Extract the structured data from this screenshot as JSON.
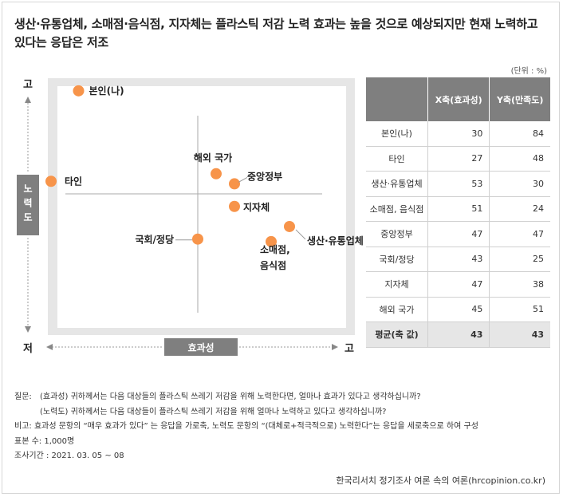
{
  "title": "생산·유통업체, 소매점·음식점, 지자체는 플라스틱 저감 노력 효과는 높을 것으로 예상되지만 현재 노력하고 있다는 응답은 저조",
  "unit": "(단위 : %)",
  "axis": {
    "y_label": "노력도",
    "x_label": "효과성",
    "y_high": "고",
    "y_low": "저",
    "x_high": "고"
  },
  "table": {
    "headers": [
      "",
      "X축(효과성)",
      "Y축(만족도)"
    ],
    "rows": [
      {
        "label": "본인(나)",
        "x": "30",
        "y": "84"
      },
      {
        "label": "타인",
        "x": "27",
        "y": "48"
      },
      {
        "label": "생산·유통업체",
        "x": "53",
        "y": "30"
      },
      {
        "label": "소매점, 음식점",
        "x": "51",
        "y": "24"
      },
      {
        "label": "중앙정부",
        "x": "47",
        "y": "47"
      },
      {
        "label": "국회/정당",
        "x": "43",
        "y": "25"
      },
      {
        "label": "지자체",
        "x": "47",
        "y": "38"
      },
      {
        "label": "해외 국가",
        "x": "45",
        "y": "51"
      }
    ],
    "avg": {
      "label": "평균(축 값)",
      "x": "43",
      "y": "43"
    }
  },
  "chart_data": {
    "type": "scatter",
    "xlabel": "효과성",
    "ylabel": "노력도",
    "x_center": 43,
    "y_center": 43,
    "marker_color": "#f7944a",
    "points": [
      {
        "label": "본인(나)",
        "x": 30,
        "y": 84
      },
      {
        "label": "타인",
        "x": 27,
        "y": 48
      },
      {
        "label": "생산·유통업체",
        "x": 53,
        "y": 30
      },
      {
        "label": "소매점, 음식점",
        "x": 51,
        "y": 24
      },
      {
        "label": "중앙정부",
        "x": 47,
        "y": 47
      },
      {
        "label": "국회/정당",
        "x": 43,
        "y": 25
      },
      {
        "label": "지자체",
        "x": 47,
        "y": 38
      },
      {
        "label": "해외 국가",
        "x": 45,
        "y": 51
      }
    ]
  },
  "notes": {
    "q_label": "질문:",
    "q1": "(효과성) 귀하께서는 다음 대상들의 플라스틱 쓰레기 저감을 위해 노력한다면, 얼마나 효과가 있다고 생각하십니까?",
    "q2": "(노력도) 귀하께서는 다음 대상들이 플라스틱 쓰레기 저감을 위해 얼마나 노력하고 있다고 생각하십니까?",
    "note": "비고: 효과성 문항의 “매우 효과가 있다” 는 응답을 가로축, 노력도 문항의 “(대체로+적극적으로) 노력한다”는 응답을 세로축으로 하여 구성",
    "sample": "표본 수: 1,000명",
    "period": "조사기간 : 2021. 03. 05 ~ 08"
  },
  "source": "한국리서치 정기조사 여론 속의 여론(hrcopinion.co.kr)"
}
